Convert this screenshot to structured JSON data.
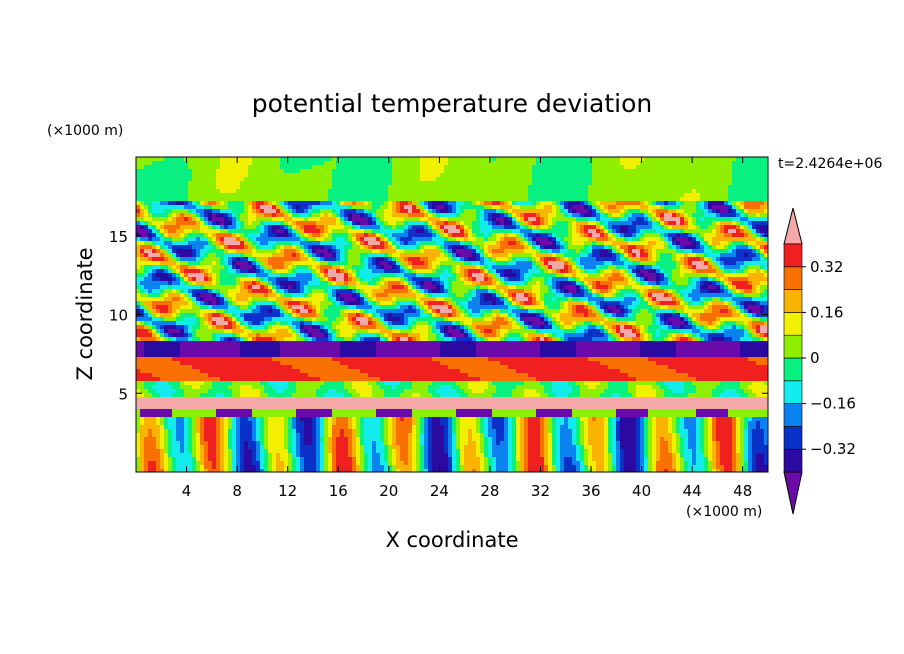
{
  "chart_data": {
    "type": "heatmap",
    "title": "potential temperature deviation",
    "time_label": "t=2.4264e+06",
    "x_axis": {
      "label": "X coordinate",
      "unit": "(×1000 m)",
      "range": [
        0,
        50
      ],
      "ticks": [
        "4",
        "8",
        "12",
        "16",
        "20",
        "24",
        "28",
        "32",
        "36",
        "40",
        "44",
        "48"
      ]
    },
    "y_axis": {
      "label": "Z coordinate",
      "unit": "(×1000 m)",
      "range": [
        0,
        20
      ],
      "ticks": [
        "5",
        "10",
        "15"
      ]
    },
    "colorbar": {
      "labels": [
        "0.32",
        "0.16",
        "0",
        "−0.16",
        "−0.32"
      ],
      "levels": [
        {
          "color": "#6a0aa8"
        },
        {
          "color": "#2a0aa0"
        },
        {
          "color": "#0a32c8"
        },
        {
          "color": "#0a82f0"
        },
        {
          "color": "#12ecec"
        },
        {
          "color": "#08f080"
        },
        {
          "color": "#8ef000"
        },
        {
          "color": "#f0f000"
        },
        {
          "color": "#f8b400"
        },
        {
          "color": "#f87000"
        },
        {
          "color": "#f02020"
        },
        {
          "color": "#f4a8a8"
        }
      ],
      "extends": "both"
    }
  }
}
